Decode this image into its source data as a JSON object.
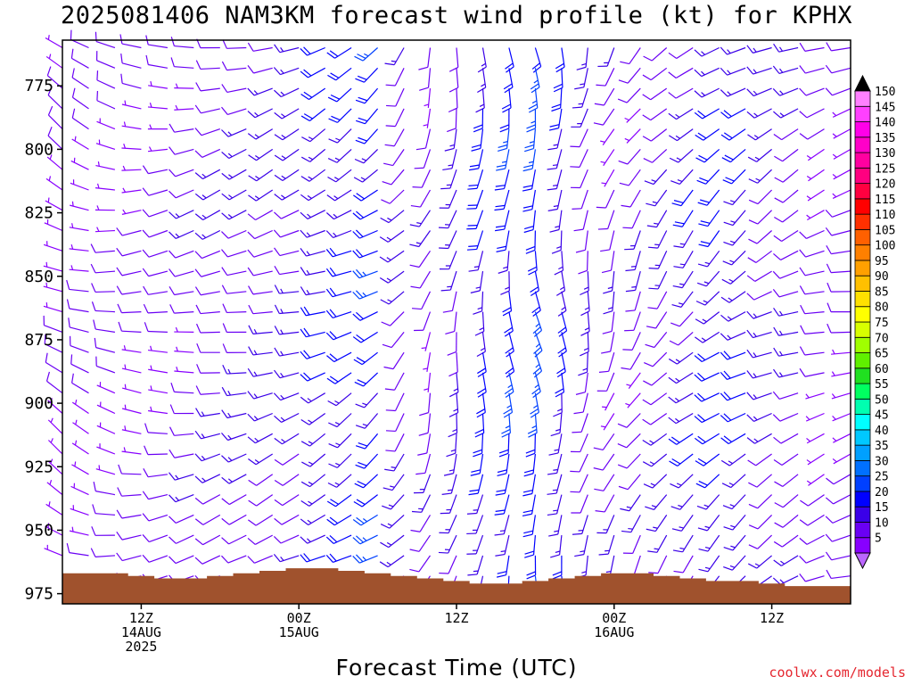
{
  "title": "2025081406 NAM3KM forecast wind profile (kt) for KPHX",
  "xlabel": "Forecast Time (UTC)",
  "watermark": "coolwx.com/models",
  "chart_data": {
    "type": "wind_barb_profile",
    "y_ticks": [
      775,
      800,
      825,
      850,
      875,
      900,
      925,
      950,
      975
    ],
    "y_range_hPa": [
      757,
      979
    ],
    "x_ticks": [
      {
        "line1": "12Z",
        "line2": "14AUG",
        "line3": "2025",
        "hour": 6
      },
      {
        "line1": "00Z",
        "line2": "15AUG",
        "line3": "",
        "hour": 18
      },
      {
        "line1": "12Z",
        "line2": "",
        "line3": "",
        "hour": 30
      },
      {
        "line1": "00Z",
        "line2": "16AUG",
        "line3": "",
        "hour": 42
      },
      {
        "line1": "12Z",
        "line2": "",
        "line3": "",
        "hour": 54
      }
    ],
    "x_range_hours": [
      0,
      60
    ],
    "barb_levels_hPa": [
      760,
      768,
      776,
      784,
      792,
      800,
      808,
      816,
      824,
      832,
      840,
      848,
      856,
      864,
      872,
      880,
      888,
      896,
      904,
      912,
      920,
      928,
      936,
      944,
      952,
      960,
      968,
      976
    ],
    "columns": [
      {
        "hour": 0,
        "dir": 300,
        "spd": 8,
        "sfc": 967
      },
      {
        "hour": 2,
        "dir": 290,
        "spd": 9,
        "sfc": 967
      },
      {
        "hour": 4,
        "dir": 280,
        "spd": 10,
        "sfc": 967
      },
      {
        "hour": 6,
        "dir": 270,
        "spd": 10,
        "sfc": 968
      },
      {
        "hour": 8,
        "dir": 265,
        "spd": 11,
        "sfc": 969
      },
      {
        "hour": 10,
        "dir": 260,
        "spd": 12,
        "sfc": 969
      },
      {
        "hour": 12,
        "dir": 255,
        "spd": 13,
        "sfc": 968
      },
      {
        "hour": 14,
        "dir": 255,
        "spd": 14,
        "sfc": 967
      },
      {
        "hour": 16,
        "dir": 250,
        "spd": 15,
        "sfc": 966
      },
      {
        "hour": 18,
        "dir": 250,
        "spd": 16,
        "sfc": 965
      },
      {
        "hour": 20,
        "dir": 245,
        "spd": 18,
        "sfc": 965
      },
      {
        "hour": 22,
        "dir": 240,
        "spd": 20,
        "sfc": 966
      },
      {
        "hour": 24,
        "dir": 235,
        "spd": 22,
        "sfc": 967
      },
      {
        "hour": 26,
        "dir": 220,
        "spd": 14,
        "sfc": 968
      },
      {
        "hour": 28,
        "dir": 200,
        "spd": 12,
        "sfc": 969
      },
      {
        "hour": 30,
        "dir": 190,
        "spd": 16,
        "sfc": 970
      },
      {
        "hour": 32,
        "dir": 185,
        "spd": 20,
        "sfc": 971
      },
      {
        "hour": 34,
        "dir": 180,
        "spd": 22,
        "sfc": 971
      },
      {
        "hour": 36,
        "dir": 175,
        "spd": 24,
        "sfc": 970
      },
      {
        "hour": 38,
        "dir": 180,
        "spd": 18,
        "sfc": 969
      },
      {
        "hour": 40,
        "dir": 190,
        "spd": 14,
        "sfc": 968
      },
      {
        "hour": 42,
        "dir": 200,
        "spd": 12,
        "sfc": 967
      },
      {
        "hour": 44,
        "dir": 210,
        "spd": 12,
        "sfc": 967
      },
      {
        "hour": 46,
        "dir": 220,
        "spd": 14,
        "sfc": 968
      },
      {
        "hour": 48,
        "dir": 225,
        "spd": 17,
        "sfc": 969
      },
      {
        "hour": 50,
        "dir": 230,
        "spd": 20,
        "sfc": 970
      },
      {
        "hour": 52,
        "dir": 235,
        "spd": 18,
        "sfc": 970
      },
      {
        "hour": 54,
        "dir": 240,
        "spd": 15,
        "sfc": 971
      },
      {
        "hour": 56,
        "dir": 245,
        "spd": 13,
        "sfc": 972
      },
      {
        "hour": 58,
        "dir": 250,
        "spd": 11,
        "sfc": 972
      },
      {
        "hour": 60,
        "dir": 255,
        "spd": 10,
        "sfc": 972
      }
    ],
    "colorbar": {
      "labels": [
        "5",
        "10",
        "15",
        "20",
        "25",
        "30",
        "35",
        "40",
        "45",
        "50",
        "55",
        "60",
        "65",
        "70",
        "75",
        "80",
        "85",
        "90",
        "95",
        "100",
        "105",
        "110",
        "115",
        "120",
        "125",
        "130",
        "135",
        "140",
        "145",
        "150"
      ],
      "colors": [
        "#8800ff",
        "#6a00f4",
        "#3a00e8",
        "#0000ff",
        "#0040ff",
        "#0070ff",
        "#00a0ff",
        "#00c8ff",
        "#00ffff",
        "#00ffb0",
        "#00ff60",
        "#20e020",
        "#60f000",
        "#a0ff00",
        "#d8ff00",
        "#ffff00",
        "#ffe000",
        "#ffc000",
        "#ffa000",
        "#ff8000",
        "#ff6000",
        "#ff3000",
        "#ff0000",
        "#ff0040",
        "#ff0080",
        "#ff00a0",
        "#ff00c8",
        "#ff00e8",
        "#ff40ff",
        "#ff80ff"
      ]
    },
    "terrain_color": "#a0522d",
    "grid": false
  }
}
